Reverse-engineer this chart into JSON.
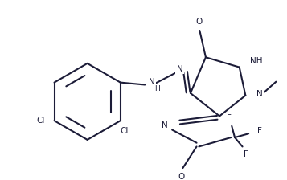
{
  "bg": "#ffffff",
  "lc": "#1c1c38",
  "lw": 1.5,
  "fs": 7.5,
  "figsize": [
    3.57,
    2.24
  ],
  "dpi": 100,
  "xlim": [
    0,
    357
  ],
  "ylim": [
    0,
    224
  ]
}
